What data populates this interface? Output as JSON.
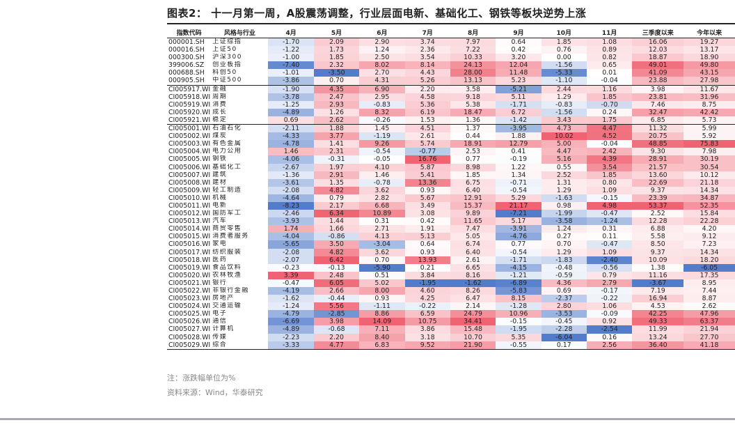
{
  "title": "图表2：  十一月第一周，A股震荡调整，行业层面电新、基础化工、钢铁等板块逆势上涨",
  "note": "注：涨跌幅单位为%",
  "source": "资料来源：Wind，华泰研究",
  "colors": {
    "positive": "#ef5b6b",
    "negative": "#4a76c8",
    "text": "#222222"
  },
  "chart_data": {
    "type": "table",
    "columns": [
      "指数代码",
      "风格与行业",
      "4月",
      "5月",
      "6月",
      "7月",
      "8月",
      "9月",
      "10月",
      "11月",
      "三季度以来",
      "今年以来"
    ],
    "separators_after": [
      5,
      10
    ],
    "rows": [
      [
        "000001.SH",
        "上证综指",
        -1.7,
        2.09,
        2.9,
        3.74,
        7.97,
        0.64,
        1.85,
        1.08,
        16.06,
        19.27
      ],
      [
        "000016.SH",
        "上证50",
        -1.22,
        1.73,
        1.24,
        2.36,
        7.22,
        0.42,
        0.76,
        0.89,
        12.03,
        13.17
      ],
      [
        "000300.SH",
        "沪深300",
        -1.0,
        1.85,
        2.5,
        3.54,
        10.33,
        3.2,
        0.0,
        0.82,
        18.87,
        18.9
      ],
      [
        "399006.SZ",
        "创业板指",
        -7.4,
        2.32,
        8.02,
        8.14,
        24.13,
        12.04,
        -1.56,
        0.65,
        49.01,
        49.8
      ],
      [
        "000688.SH",
        "科创50",
        -1.01,
        -3.5,
        2.7,
        4.43,
        28.0,
        11.48,
        -5.33,
        0.01,
        41.09,
        43.15
      ],
      [
        "000905.SH",
        "中证500",
        -3.86,
        0.7,
        4.31,
        5.26,
        13.13,
        5.23,
        -1.1,
        -0.04,
        23.88,
        27.98
      ],
      [
        "CI005917.WI",
        "金融",
        -1.9,
        4.35,
        6.9,
        2.2,
        3.58,
        -5.21,
        2.44,
        1.16,
        3.98,
        11.67
      ],
      [
        "CI005918.WI",
        "周期",
        -3.78,
        2.47,
        2.95,
        4.58,
        9.18,
        5.11,
        1.29,
        1.85,
        23.81,
        31.96
      ],
      [
        "CI005919.WI",
        "消费",
        -1.25,
        2.93,
        -0.83,
        5.36,
        5.38,
        -1.71,
        -0.83,
        -0.7,
        7.46,
        8.75
      ],
      [
        "CI005920.WI",
        "成长",
        -4.89,
        1.26,
        8.32,
        6.19,
        18.47,
        6.72,
        -1.56,
        0.24,
        32.47,
        42.42
      ],
      [
        "CI005921.WI",
        "稳定",
        0.69,
        2.62,
        -0.26,
        1.53,
        1.36,
        -1.42,
        3.43,
        1.75,
        6.85,
        5.73
      ],
      [
        "CI005001.WI",
        "石油石化",
        -2.11,
        1.88,
        1.45,
        4.51,
        1.37,
        -3.95,
        4.73,
        4.47,
        11.32,
        5.99
      ],
      [
        "CI005002.WI",
        "煤炭",
        -4.33,
        3.77,
        -1.19,
        2.61,
        0.44,
        1.88,
        10.02,
        4.52,
        20.75,
        5.92
      ],
      [
        "CI005003.WI",
        "有色金属",
        -4.78,
        1.41,
        9.26,
        5.74,
        18.91,
        12.79,
        5.0,
        -0.04,
        48.85,
        75.83
      ],
      [
        "CI005004.WI",
        "电力公用",
        1.46,
        2.31,
        -0.54,
        -0.77,
        2.53,
        0.41,
        4.47,
        2.42,
        9.3,
        7.98
      ],
      [
        "CI005005.WI",
        "钢铁",
        -4.06,
        -0.31,
        -0.05,
        16.76,
        0.77,
        -0.19,
        5.16,
        4.39,
        28.91,
        30.19
      ],
      [
        "CI005006.WI",
        "基础化工",
        -2.67,
        1.97,
        4.1,
        5.87,
        8.98,
        1.22,
        0.55,
        3.54,
        21.57,
        30.54
      ],
      [
        "CI005007.WI",
        "建筑",
        -1.36,
        2.91,
        1.46,
        5.41,
        1.85,
        1.34,
        2.52,
        1.85,
        13.6,
        10.12
      ],
      [
        "CI005008.WI",
        "建材",
        -3.61,
        1.35,
        -0.78,
        13.36,
        6.75,
        -0.71,
        1.31,
        0.8,
        22.69,
        21.18
      ],
      [
        "CI005009.WI",
        "轻工制造",
        -2.08,
        4.82,
        3.62,
        0.93,
        6.4,
        -0.54,
        1.29,
        1.09,
        9.37,
        14.34
      ],
      [
        "CI005010.WI",
        "机械",
        -4.64,
        0.79,
        2.82,
        5.67,
        12.91,
        5.29,
        -1.63,
        -0.15,
        23.39,
        34.87
      ],
      [
        "CI005011.WI",
        "电新",
        -8.23,
        2.17,
        6.68,
        3.49,
        15.37,
        21.17,
        0.98,
        4.98,
        53.37,
        52.35
      ],
      [
        "CI005012.WI",
        "国防军工",
        -2.46,
        6.34,
        10.89,
        3.08,
        9.89,
        -7.21,
        -1.99,
        -0.47,
        2.52,
        15.84
      ],
      [
        "CI005013.WI",
        "汽车",
        -3.93,
        1.44,
        0.31,
        0.42,
        11.65,
        5.17,
        -3.58,
        -1.24,
        12.28,
        22.28
      ],
      [
        "CI005014.WI",
        "商贸零售",
        1.74,
        1.66,
        2.71,
        1.91,
        7.47,
        -3.91,
        1.24,
        0.31,
        6.88,
        4.2
      ],
      [
        "CI005015.WI",
        "消费者服务",
        -4.04,
        -0.86,
        4.13,
        5.13,
        5.05,
        -4.76,
        0.27,
        0.11,
        5.58,
        9.12
      ],
      [
        "CI005016.WI",
        "家电",
        -5.65,
        3.5,
        -3.04,
        0.64,
        6.74,
        0.77,
        0.7,
        -0.47,
        8.5,
        7.23
      ],
      [
        "CI005017.WI",
        "纺织服装",
        -2.08,
        4.82,
        3.62,
        0.93,
        6.4,
        -0.54,
        1.29,
        1.09,
        9.37,
        14.34
      ],
      [
        "CI005018.WI",
        "医药",
        -2.07,
        6.42,
        0.7,
        13.93,
        2.61,
        -1.71,
        -1.83,
        -2.4,
        10.09,
        18.2
      ],
      [
        "CI005019.WI",
        "食品饮料",
        -0.23,
        -0.13,
        -5.9,
        0.21,
        6.65,
        -4.15,
        -0.48,
        -0.56,
        1.38,
        -6.05
      ],
      [
        "CI005020.WI",
        "农林牧渔",
        3.39,
        2.48,
        0.51,
        3.84,
        8.16,
        -1.21,
        -0.59,
        0.79,
        11.16,
        17.35
      ],
      [
        "CI005021.WI",
        "银行",
        -0.47,
        6.05,
        5.02,
        -1.95,
        -1.62,
        -6.89,
        4.36,
        2.79,
        -3.67,
        8.95
      ],
      [
        "CI005022.WI",
        "非银行金融",
        -4.19,
        2.66,
        8.0,
        4.6,
        8.26,
        -5.83,
        0.69,
        -0.17,
        7.19,
        7.44
      ],
      [
        "CI005023.WI",
        "房地产",
        -1.62,
        -0.44,
        0.93,
        4.25,
        6.47,
        8.15,
        -2.37,
        -0.22,
        16.94,
        8.87
      ],
      [
        "CI005024.WI",
        "交通运输",
        -1.24,
        5.56,
        -1.11,
        -0.22,
        2.14,
        -1.28,
        2.8,
        1.06,
        4.53,
        2.62
      ],
      [
        "CI005025.WI",
        "电子",
        -4.79,
        -2.85,
        8.86,
        6.59,
        24.79,
        10.96,
        -3.53,
        -0.09,
        42.25,
        47.96
      ],
      [
        "CI005026.WI",
        "通信",
        -6.69,
        3.98,
        14.09,
        10.75,
        34.41,
        -0.15,
        -0.45,
        0.92,
        49.33,
        63.37
      ],
      [
        "CI005027.WI",
        "计算机",
        -4.89,
        -0.68,
        7.11,
        3.86,
        15.48,
        -1.95,
        -2.28,
        -2.54,
        11.99,
        21.94
      ],
      [
        "CI005028.WI",
        "传媒",
        -2.23,
        2.2,
        8.4,
        3.18,
        10.7,
        5.35,
        -6.04,
        0.16,
        13.24,
        27.7
      ],
      [
        "CI005029.WI",
        "综合",
        -3.33,
        4.77,
        6.83,
        9.52,
        21.9,
        -0.55,
        0.17,
        2.56,
        36.4,
        41.18
      ]
    ]
  }
}
